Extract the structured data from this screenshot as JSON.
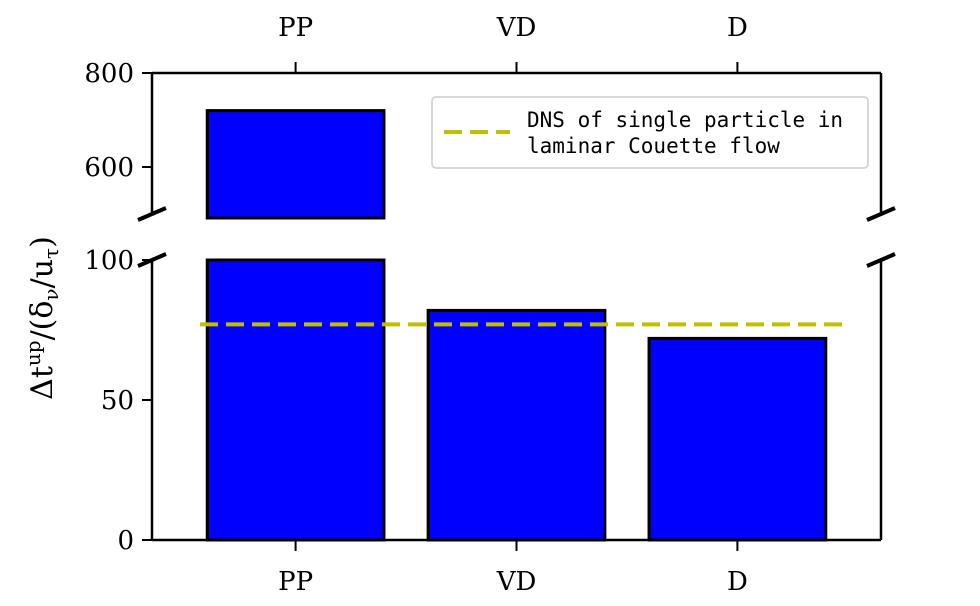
{
  "chart_data": {
    "type": "bar",
    "categories": [
      "PP",
      "VD",
      "D"
    ],
    "values": [
      720,
      82,
      72
    ],
    "bar_color": "#0000ff",
    "edge_color": "#000000",
    "reference_line": {
      "label_lines": [
        "DNS of single particle in",
        "laminar Couette flow"
      ],
      "value": 77,
      "color": "#bfbf00",
      "style": "dashed"
    },
    "ylabel": "Δt^{up}/(δ_ν/u_τ)",
    "ylabel_main": "Δt",
    "ylabel_sup": "up",
    "ylabel_rest": "/(δ",
    "ylabel_sub1": "ν",
    "ylabel_mid": "/u",
    "ylabel_sub2": "τ",
    "ylabel_end": ")",
    "axis_break": true,
    "upper_ylim": [
      500,
      800
    ],
    "lower_ylim": [
      0,
      100
    ],
    "upper_yticks": [
      "600",
      "800"
    ],
    "lower_yticks": [
      "0",
      "50",
      "100"
    ],
    "xtick_labels_top": [
      "PP",
      "VD",
      "D"
    ],
    "xtick_labels_bottom": [
      "PP",
      "VD",
      "D"
    ],
    "legend_position": "top-right",
    "grid": false
  }
}
